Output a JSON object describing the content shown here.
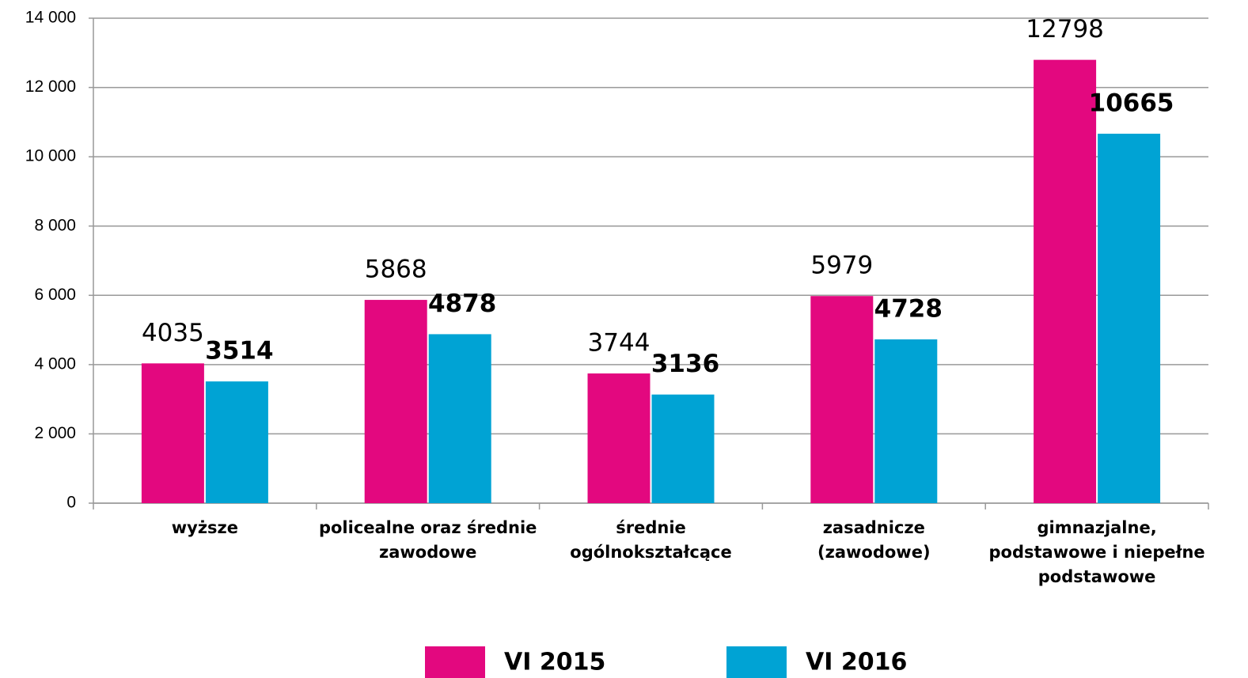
{
  "chart_data": {
    "type": "bar",
    "categories": [
      "wyższe",
      "policealne oraz średnie\nzawodowe",
      "średnie\nogólnokształcące",
      "zasadnicze\n(zawodowe)",
      "gimnazjalne,\npodstawowe i niepełne\npodstawowe"
    ],
    "series": [
      {
        "name": "VI 2015",
        "color": "#e3087f",
        "values": [
          4035,
          5868,
          3744,
          5979,
          12798
        ]
      },
      {
        "name": "VI 2016",
        "color": "#00a3d4",
        "values": [
          3514,
          4878,
          3136,
          4728,
          10665
        ]
      }
    ],
    "ylim": [
      0,
      14000
    ],
    "yticks": [
      0,
      {
        "value": 2000,
        "label": "2 000"
      },
      {
        "value": 4000,
        "label": "4 000"
      },
      {
        "value": 6000,
        "label": "6 000"
      },
      {
        "value": 8000,
        "label": "8 000"
      },
      {
        "value": 10000,
        "label": "10 000"
      },
      {
        "value": 12000,
        "label": "12 000"
      },
      {
        "value": 14000,
        "label": "14 000"
      }
    ],
    "grid": true,
    "legend": "bottom"
  }
}
